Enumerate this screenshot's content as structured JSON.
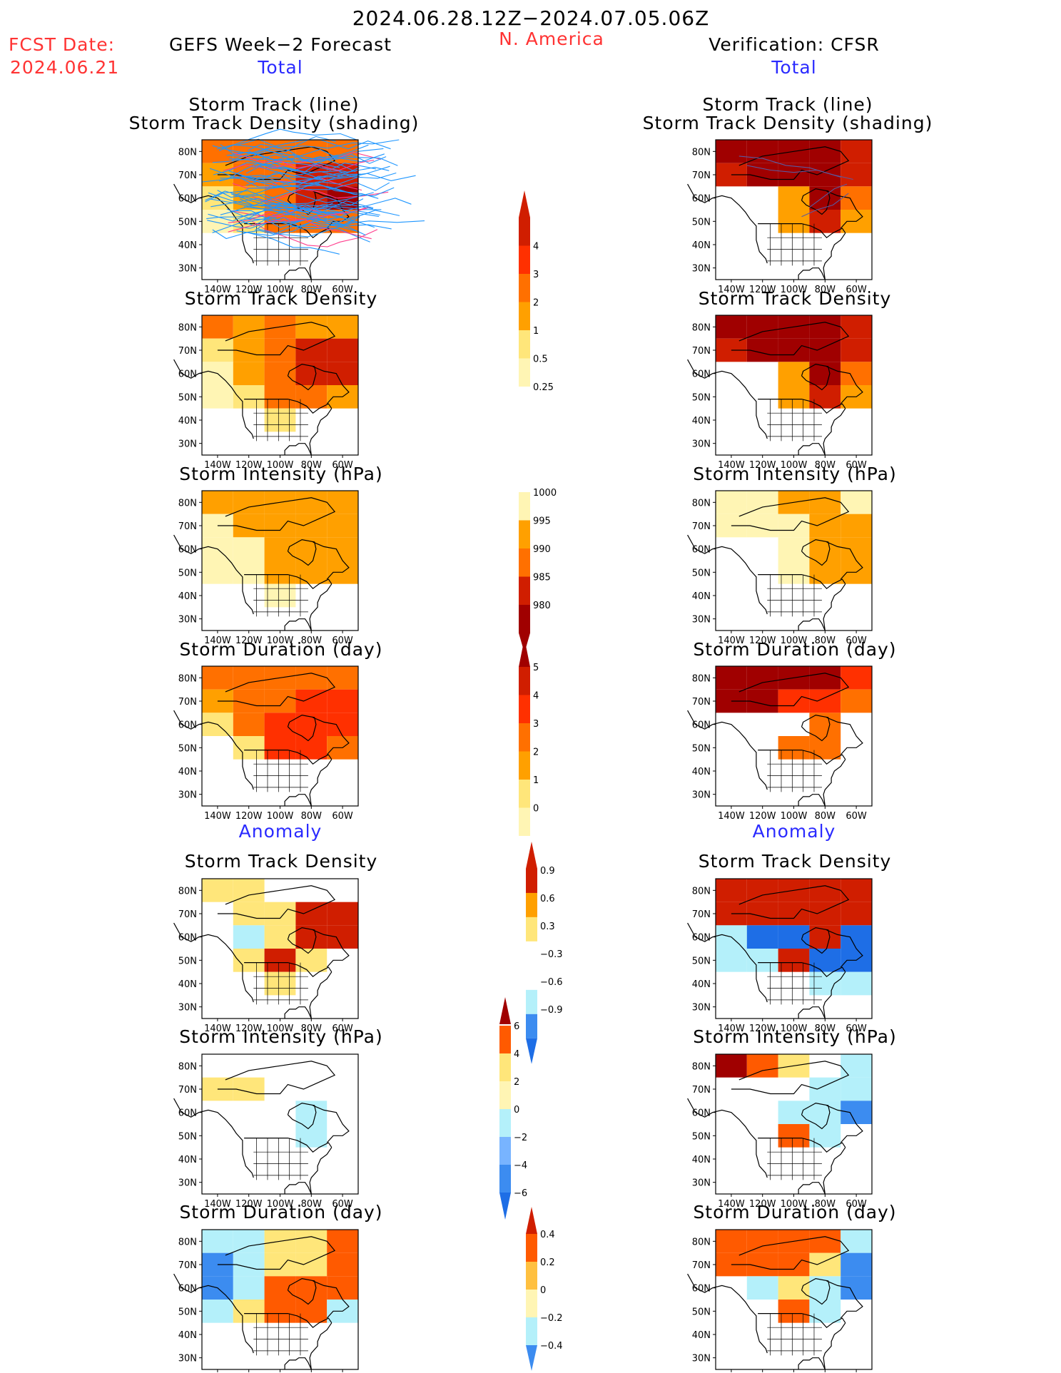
{
  "header": {
    "date_range": "2024.06.28.12Z−2024.07.05.06Z",
    "fcst_label": "FCST Date:",
    "fcst_date": "2024.06.21",
    "region": "N. America",
    "left_title": "GEFS Week−2 Forecast",
    "right_title": "Verification: CFSR",
    "left_section_total": "Total",
    "right_section_total": "Total",
    "left_section_anomaly": "Anomaly",
    "right_section_anomaly": "Anomaly"
  },
  "panels": {
    "left": [
      {
        "title": "Storm Track (line)",
        "subtitle": "Storm Track Density (shading)"
      },
      {
        "title": "Storm Track Density"
      },
      {
        "title": "Storm Intensity (hPa)"
      },
      {
        "title": "Storm Duration (day)"
      },
      {
        "title": "Storm Track Density"
      },
      {
        "title": "Storm Intensity (hPa)"
      },
      {
        "title": "Storm Duration (day)"
      }
    ],
    "right": [
      {
        "title": "Storm Track (line)",
        "subtitle": "Storm Track Density (shading)"
      },
      {
        "title": "Storm Track Density"
      },
      {
        "title": "Storm Intensity (hPa)"
      },
      {
        "title": "Storm Duration (day)"
      },
      {
        "title": "Storm Track Density"
      },
      {
        "title": "Storm Intensity (hPa)"
      },
      {
        "title": "Storm Duration (day)"
      }
    ]
  },
  "colors": {
    "shade": [
      "#ffffff",
      "#fff5b4",
      "#ffe67a",
      "#ffc040",
      "#ffa000",
      "#ff7000",
      "#ff3000",
      "#d01e00",
      "#a00000"
    ],
    "anom": [
      "#1e6ee6",
      "#3c8cf0",
      "#78b4ff",
      "#b4f0fa",
      "#ffffff",
      "#fff5b4",
      "#ffe67a",
      "#ffc040",
      "#ffa000",
      "#ff5a00",
      "#d01e00",
      "#a00000"
    ],
    "track_line": "#1e96ff",
    "verif_track_line": "#5a5aa0"
  },
  "chart_data": [
    {
      "type": "heatmap",
      "name": "gefs-track-lines-density",
      "xlabel_ticks": [
        "140W",
        "120W",
        "100W",
        "80W",
        "60W"
      ],
      "ylabel_ticks": [
        "30N",
        "40N",
        "50N",
        "60N",
        "70N",
        "80N"
      ],
      "lon_range": [
        -150,
        -50
      ],
      "lat_range": [
        25,
        85
      ],
      "values_grid_lon": [
        -140,
        -120,
        -100,
        -80,
        -60
      ],
      "values_grid_lat": [
        80,
        70,
        60,
        50,
        40,
        30
      ],
      "values": [
        [
          2,
          2,
          2,
          2,
          2
        ],
        [
          1,
          2,
          2,
          3,
          3
        ],
        [
          0.5,
          1,
          2,
          3,
          4
        ],
        [
          0.25,
          0.5,
          2,
          2,
          2
        ],
        [
          0,
          0,
          0,
          0,
          0
        ],
        [
          0,
          0,
          0,
          0,
          0
        ]
      ]
    },
    {
      "type": "heatmap",
      "name": "cfsr-track-lines-density",
      "xlabel_ticks": [
        "140W",
        "120W",
        "100W",
        "80W",
        "60W"
      ],
      "ylabel_ticks": [
        "30N",
        "40N",
        "50N",
        "60N",
        "70N",
        "80N"
      ],
      "lon_range": [
        -150,
        -50
      ],
      "lat_range": [
        25,
        85
      ],
      "values_grid_lon": [
        -140,
        -120,
        -100,
        -80,
        -60
      ],
      "values_grid_lat": [
        80,
        70,
        60,
        50,
        40,
        30
      ],
      "values": [
        [
          4,
          4,
          4,
          4,
          3
        ],
        [
          3,
          4,
          4,
          4,
          3
        ],
        [
          0,
          0,
          1,
          4,
          2
        ],
        [
          0,
          0,
          1,
          3,
          1
        ],
        [
          0,
          0,
          0,
          0,
          0
        ],
        [
          0,
          0,
          0,
          0,
          0
        ]
      ]
    },
    {
      "type": "heatmap",
      "name": "gefs-storm-track-density",
      "values": [
        [
          2,
          1,
          2,
          1,
          1
        ],
        [
          0.5,
          1,
          2,
          3,
          3
        ],
        [
          0.25,
          1,
          2,
          3,
          3
        ],
        [
          0.25,
          0.5,
          2,
          2,
          1
        ],
        [
          0,
          0,
          0.5,
          0,
          0
        ],
        [
          0,
          0,
          0,
          0,
          0
        ]
      ]
    },
    {
      "type": "heatmap",
      "name": "cfsr-storm-track-density",
      "values": [
        [
          4,
          4,
          4,
          4,
          3
        ],
        [
          3,
          4,
          4,
          4,
          3
        ],
        [
          0,
          0,
          1,
          4,
          2
        ],
        [
          0,
          0,
          1,
          3,
          1
        ],
        [
          0,
          0,
          0,
          0,
          0
        ],
        [
          0,
          0,
          0,
          0,
          0
        ]
      ]
    },
    {
      "type": "heatmap",
      "name": "gefs-storm-intensity",
      "colorbar": [
        "1000",
        "995",
        "990",
        "985",
        "980"
      ],
      "values": [
        [
          995,
          995,
          995,
          995,
          995
        ],
        [
          1000,
          995,
          995,
          995,
          995
        ],
        [
          1000,
          1000,
          995,
          995,
          995
        ],
        [
          1000,
          1000,
          995,
          995,
          995
        ],
        [
          0,
          0,
          1000,
          0,
          0
        ],
        [
          0,
          0,
          0,
          0,
          0
        ]
      ]
    },
    {
      "type": "heatmap",
      "name": "cfsr-storm-intensity",
      "values": [
        [
          1000,
          1000,
          995,
          995,
          1000
        ],
        [
          1000,
          1000,
          1000,
          995,
          995
        ],
        [
          0,
          0,
          1000,
          995,
          995
        ],
        [
          0,
          0,
          1000,
          995,
          995
        ],
        [
          0,
          0,
          0,
          0,
          0
        ],
        [
          0,
          0,
          0,
          0,
          0
        ]
      ]
    },
    {
      "type": "heatmap",
      "name": "gefs-storm-duration",
      "colorbar": [
        "5",
        "4",
        "3",
        "2",
        "1",
        "0"
      ],
      "values": [
        [
          3,
          3,
          3,
          3,
          3
        ],
        [
          2,
          3,
          3,
          4,
          4
        ],
        [
          1,
          3,
          4,
          4,
          4
        ],
        [
          0,
          1,
          4,
          4,
          3
        ],
        [
          0,
          0,
          0,
          0,
          0
        ],
        [
          0,
          0,
          0,
          0,
          0
        ]
      ]
    },
    {
      "type": "heatmap",
      "name": "cfsr-storm-duration",
      "values": [
        [
          5,
          5,
          5,
          5,
          4
        ],
        [
          5,
          5,
          4,
          4,
          3
        ],
        [
          0,
          0,
          0,
          3,
          0
        ],
        [
          0,
          0,
          3,
          3,
          0
        ],
        [
          0,
          0,
          0,
          0,
          0
        ],
        [
          0,
          0,
          0,
          0,
          0
        ]
      ]
    },
    {
      "type": "heatmap",
      "name": "gefs-track-density-anomaly",
      "colorbar": [
        "0.9",
        "0.6",
        "0.3",
        "−0.3",
        "−0.6",
        "−0.9"
      ],
      "values": [
        [
          0.3,
          0.3,
          0,
          0,
          0
        ],
        [
          0,
          0.3,
          0.3,
          0.9,
          0.9
        ],
        [
          0,
          -0.3,
          0.3,
          0.9,
          0.9
        ],
        [
          0,
          0.3,
          0.9,
          0.3,
          0
        ],
        [
          0,
          0,
          0.3,
          0,
          0
        ],
        [
          0,
          0,
          0,
          0,
          0
        ]
      ]
    },
    {
      "type": "heatmap",
      "name": "cfsr-track-density-anomaly",
      "values": [
        [
          0.9,
          0.9,
          0.9,
          0.9,
          0.9
        ],
        [
          0.9,
          0.9,
          0.9,
          0.9,
          0.9
        ],
        [
          -0.3,
          -0.9,
          -0.9,
          0.9,
          -0.9
        ],
        [
          -0.3,
          -0.3,
          0.9,
          -0.9,
          -0.9
        ],
        [
          0,
          0,
          0,
          -0.3,
          -0.3
        ],
        [
          0,
          0,
          0,
          0,
          0
        ]
      ]
    },
    {
      "type": "heatmap",
      "name": "gefs-intensity-anomaly",
      "colorbar": [
        "6",
        "4",
        "2",
        "0",
        "−2",
        "−4",
        "−6"
      ],
      "values": [
        [
          0,
          0,
          0,
          0,
          0
        ],
        [
          2,
          2,
          0,
          0,
          0
        ],
        [
          0,
          0,
          0,
          -2,
          0
        ],
        [
          0,
          0,
          0,
          -2,
          0
        ],
        [
          0,
          0,
          0,
          0,
          0
        ],
        [
          0,
          0,
          0,
          0,
          0
        ]
      ]
    },
    {
      "type": "heatmap",
      "name": "cfsr-intensity-anomaly",
      "values": [
        [
          6,
          4,
          2,
          0,
          -2
        ],
        [
          0,
          0,
          0,
          -2,
          -2
        ],
        [
          0,
          0,
          -2,
          -2,
          -4
        ],
        [
          0,
          0,
          4,
          -2,
          0
        ],
        [
          0,
          0,
          0,
          0,
          0
        ],
        [
          0,
          0,
          0,
          0,
          0
        ]
      ]
    },
    {
      "type": "heatmap",
      "name": "gefs-duration-anomaly",
      "colorbar": [
        "0.4",
        "0.2",
        "0",
        "−0.2",
        "−0.4"
      ],
      "values": [
        [
          -0.2,
          -0.2,
          0.2,
          0.2,
          0.4
        ],
        [
          -0.4,
          -0.2,
          0.2,
          0.2,
          0.4
        ],
        [
          -0.4,
          -0.2,
          0.4,
          0.4,
          0.4
        ],
        [
          -0.2,
          0.2,
          0.4,
          0.4,
          -0.2
        ],
        [
          0,
          0,
          0,
          0,
          0
        ],
        [
          0,
          0,
          0,
          0,
          0
        ]
      ]
    },
    {
      "type": "heatmap",
      "name": "cfsr-duration-anomaly",
      "values": [
        [
          0.4,
          0.4,
          0.4,
          0.4,
          -0.2
        ],
        [
          0.4,
          0.4,
          0.4,
          0.2,
          -0.4
        ],
        [
          0,
          -0.2,
          0.2,
          -0.2,
          -0.4
        ],
        [
          0,
          0,
          0.4,
          -0.2,
          0
        ],
        [
          0,
          0,
          0,
          0,
          0
        ],
        [
          0,
          0,
          0,
          0,
          0
        ]
      ]
    }
  ]
}
